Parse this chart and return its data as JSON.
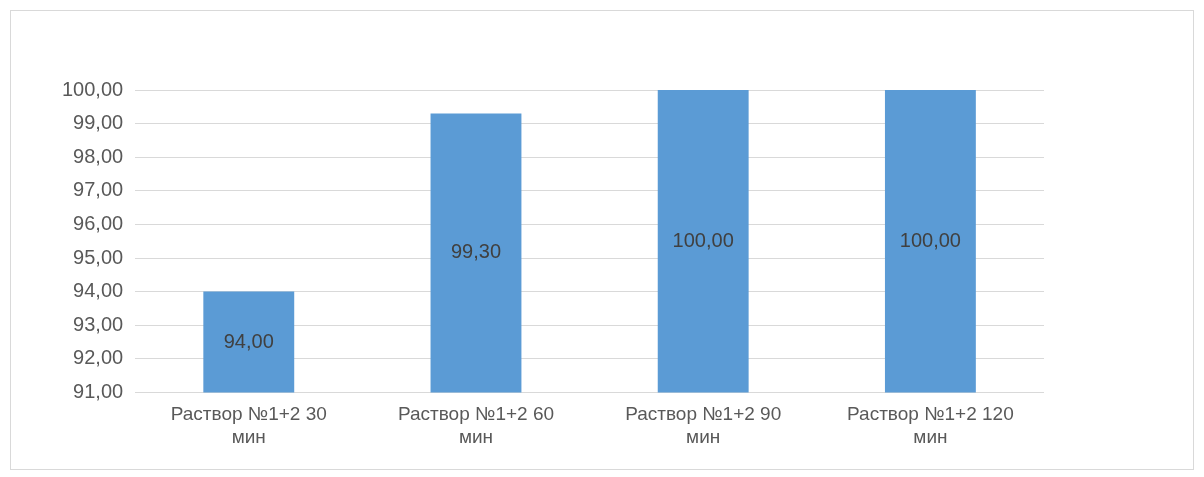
{
  "chart_data": {
    "type": "bar",
    "categories": [
      "Раствор №1+2 30 мин",
      "Раствор №1+2 60 мин",
      "Раствор №1+2 90 мин",
      "Раствор №1+2 120 мин"
    ],
    "values": [
      94,
      99.3,
      100,
      100
    ],
    "value_labels": [
      "94,00",
      "99,30",
      "100,00",
      "100,00"
    ],
    "color": "#5b9bd5",
    "ylim": [
      91,
      100
    ],
    "yticks": [
      {
        "value": 91,
        "label": "91,00"
      },
      {
        "value": 92,
        "label": "92,00"
      },
      {
        "value": 93,
        "label": "93,00"
      },
      {
        "value": 94,
        "label": "94,00"
      },
      {
        "value": 95,
        "label": "95,00"
      },
      {
        "value": 96,
        "label": "96,00"
      },
      {
        "value": 97,
        "label": "97,00"
      },
      {
        "value": 98,
        "label": "98,00"
      },
      {
        "value": 99,
        "label": "99,00"
      },
      {
        "value": 100,
        "label": "100,00"
      }
    ],
    "grid": "y",
    "legend": false
  }
}
